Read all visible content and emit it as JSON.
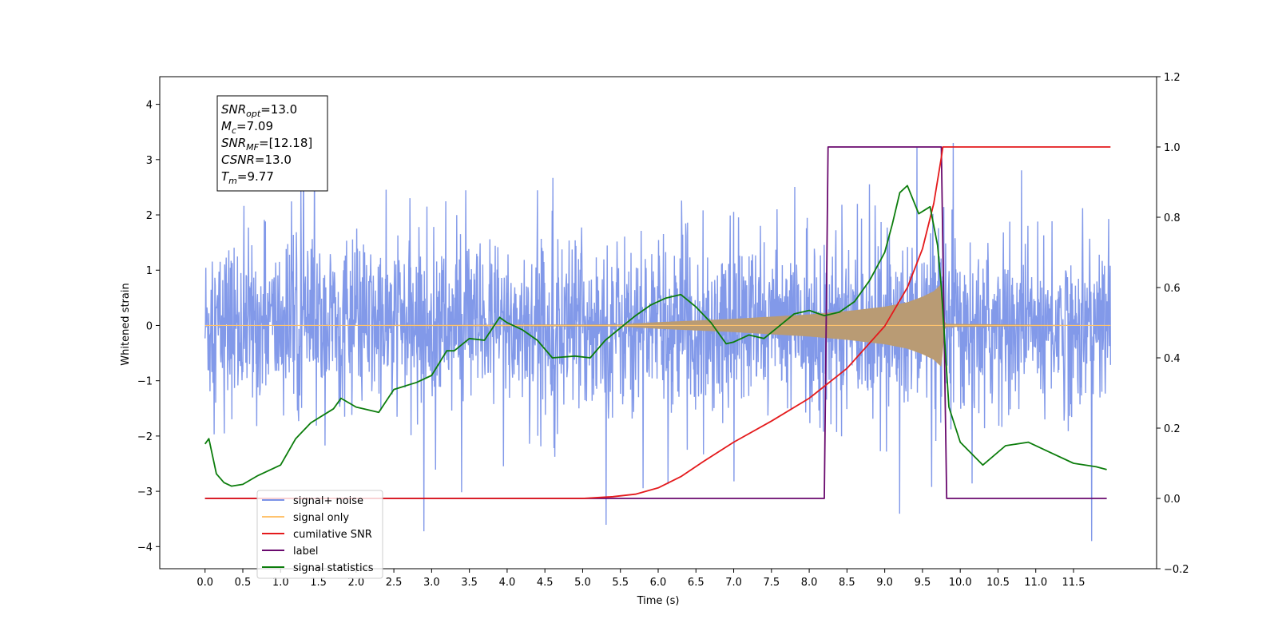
{
  "chart_data": {
    "type": "line",
    "xlabel": "Time (s)",
    "ylabel_left": "Whitened strain",
    "ylabel_right": "",
    "xlim": [
      -0.6,
      12.6
    ],
    "ylim_left": [
      -4.4,
      4.5
    ],
    "ylim_right": [
      -0.2,
      1.2
    ],
    "x_ticks": [
      "0.0",
      "0.5",
      "1.0",
      "1.5",
      "2.0",
      "2.5",
      "3.0",
      "3.5",
      "4.0",
      "4.5",
      "5.0",
      "5.5",
      "6.0",
      "6.5",
      "7.0",
      "7.5",
      "8.0",
      "8.5",
      "9.0",
      "9.5",
      "10.0",
      "10.5",
      "11.0",
      "11.5"
    ],
    "y_ticks_left": [
      "4",
      "3",
      "2",
      "1",
      "0",
      "−1",
      "−2",
      "−3",
      "−4"
    ],
    "y_ticks_right": [
      "1.2",
      "1.0",
      "0.8",
      "0.6",
      "0.4",
      "0.2",
      "0.0",
      "−0.2"
    ],
    "annotation": {
      "lines": [
        {
          "base": "SNR",
          "sub": "opt",
          "rest": "=13.0"
        },
        {
          "base": "M",
          "sub": "c",
          "rest": "=7.09"
        },
        {
          "base": "SNR",
          "sub": "MF",
          "rest": "=[12.18]"
        },
        {
          "base": "CSNR",
          "sub": "",
          "rest": "=13.0"
        },
        {
          "base": "T",
          "sub": "m",
          "rest": "=9.77"
        }
      ]
    },
    "legend": {
      "placement": "lower-left",
      "entries": [
        {
          "label": "signal+ noise",
          "color": "#7b93e8"
        },
        {
          "label": "signal only",
          "color": "#ffc36e"
        },
        {
          "label": "cumilative SNR",
          "color": "#e41a1c"
        },
        {
          "label": "label",
          "color": "#6a0a6e"
        },
        {
          "label": "signal statistics",
          "color": "#0c7d0c"
        }
      ]
    },
    "series": [
      {
        "name": "signal+ noise",
        "axis": "left",
        "color": "#7b93e8",
        "description_values": {
          "mean": 0.0,
          "approx_range": [
            -3.9,
            3.6
          ],
          "x_range": [
            0.0,
            11.99
          ],
          "typical_envelope": [
            -1.6,
            2.3
          ]
        }
      },
      {
        "name": "signal only",
        "axis": "left",
        "color": "#ffc36e",
        "chirp_envelope": {
          "x": [
            0.0,
            5.5,
            6.0,
            7.0,
            8.0,
            8.5,
            9.0,
            9.3,
            9.5,
            9.65,
            9.75,
            9.8,
            11.99
          ],
          "amp": [
            0.0,
            0.02,
            0.06,
            0.12,
            0.2,
            0.26,
            0.34,
            0.42,
            0.52,
            0.62,
            0.75,
            0.03,
            0.0
          ]
        }
      },
      {
        "name": "cumilative SNR",
        "axis": "right",
        "color": "#e41a1c",
        "x": [
          0.0,
          4.0,
          5.0,
          5.4,
          5.7,
          6.0,
          6.3,
          6.6,
          7.0,
          7.5,
          8.0,
          8.5,
          9.0,
          9.3,
          9.5,
          9.65,
          9.75,
          9.77,
          11.99
        ],
        "values": [
          0.0,
          0.0,
          0.0,
          0.005,
          0.012,
          0.03,
          0.062,
          0.105,
          0.16,
          0.22,
          0.285,
          0.37,
          0.49,
          0.6,
          0.71,
          0.84,
          0.97,
          1.0,
          1.0
        ]
      },
      {
        "name": "label",
        "axis": "right",
        "color": "#6a0a6e",
        "x": [
          0.0,
          8.2,
          8.25,
          9.75,
          9.82,
          11.94
        ],
        "values": [
          0.0,
          0.0,
          1.0,
          1.0,
          0.0,
          0.0
        ]
      },
      {
        "name": "signal statistics",
        "axis": "right",
        "color": "#0c7d0c",
        "x": [
          0.0,
          0.05,
          0.15,
          0.25,
          0.35,
          0.5,
          0.7,
          1.0,
          1.2,
          1.4,
          1.7,
          1.8,
          2.0,
          2.3,
          2.5,
          2.8,
          3.0,
          3.2,
          3.3,
          3.5,
          3.7,
          3.9,
          4.0,
          4.2,
          4.4,
          4.6,
          4.9,
          5.1,
          5.3,
          5.5,
          5.7,
          5.9,
          6.1,
          6.3,
          6.5,
          6.7,
          6.9,
          7.0,
          7.2,
          7.4,
          7.6,
          7.8,
          8.0,
          8.2,
          8.4,
          8.6,
          8.8,
          9.0,
          9.1,
          9.2,
          9.3,
          9.45,
          9.6,
          9.7,
          9.75,
          9.85,
          10.0,
          10.3,
          10.6,
          10.9,
          11.2,
          11.5,
          11.8,
          11.94
        ],
        "values": [
          0.155,
          0.17,
          0.07,
          0.045,
          0.035,
          0.04,
          0.065,
          0.095,
          0.17,
          0.215,
          0.255,
          0.285,
          0.26,
          0.245,
          0.31,
          0.33,
          0.35,
          0.42,
          0.42,
          0.455,
          0.45,
          0.515,
          0.5,
          0.48,
          0.45,
          0.4,
          0.405,
          0.4,
          0.45,
          0.485,
          0.52,
          0.55,
          0.57,
          0.58,
          0.545,
          0.5,
          0.44,
          0.445,
          0.465,
          0.455,
          0.49,
          0.525,
          0.535,
          0.52,
          0.53,
          0.56,
          0.62,
          0.7,
          0.78,
          0.87,
          0.89,
          0.81,
          0.83,
          0.72,
          0.6,
          0.26,
          0.16,
          0.095,
          0.15,
          0.16,
          0.13,
          0.1,
          0.09,
          0.082
        ]
      }
    ]
  }
}
